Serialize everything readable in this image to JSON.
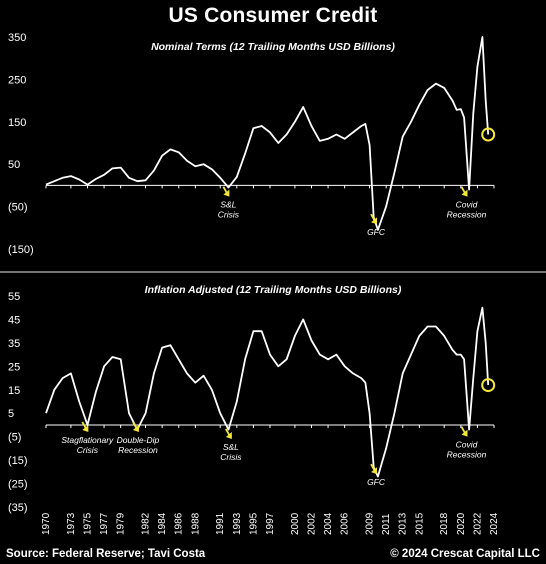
{
  "title": "US Consumer Credit",
  "source": "Source: Federal Reserve; Tavi Costa",
  "copyright": "© 2024 Crescat Capital LLC",
  "colors": {
    "background": "#000000",
    "line": "#ffffff",
    "highlight": "#f5e63a",
    "divider": "#9a9a9a"
  },
  "x_ticks": [
    "1970",
    "1973",
    "1975",
    "1977",
    "1979",
    "1982",
    "1984",
    "1986",
    "1988",
    "1991",
    "1993",
    "1995",
    "1997",
    "2000",
    "2002",
    "2004",
    "2006",
    "2009",
    "2011",
    "2013",
    "2015",
    "2018",
    "2020",
    "2022",
    "2024"
  ],
  "chart_data": [
    {
      "type": "line",
      "title": "Nominal Terms (12 Trailing Months USD Billions)",
      "y_tick_labels": [
        "350",
        "250",
        "150",
        "50",
        "(50)",
        "(150)"
      ],
      "y_tick_values": [
        350,
        250,
        150,
        50,
        -50,
        -150
      ],
      "ylim": [
        -150,
        350
      ],
      "xlim": [
        1970,
        2024
      ],
      "x": [
        1970,
        1971,
        1972,
        1973,
        1974,
        1975,
        1976,
        1977,
        1978,
        1979,
        1980,
        1981,
        1982,
        1983,
        1984,
        1985,
        1986,
        1987,
        1988,
        1989,
        1990,
        1991,
        1992,
        1993,
        1994,
        1995,
        1996,
        1997,
        1998,
        1999,
        2000,
        2001,
        2002,
        2003,
        2004,
        2005,
        2006,
        2007,
        2008,
        2008.5,
        2009,
        2009.5,
        2010,
        2011,
        2012,
        2013,
        2014,
        2015,
        2016,
        2017,
        2018,
        2019,
        2019.5,
        2020,
        2020.4,
        2021,
        2021.5,
        2022,
        2022.6,
        2023,
        2023.3
      ],
      "values": [
        2,
        10,
        18,
        22,
        14,
        2,
        15,
        25,
        40,
        42,
        18,
        10,
        12,
        35,
        70,
        85,
        78,
        58,
        45,
        50,
        38,
        18,
        -5,
        20,
        75,
        135,
        140,
        125,
        100,
        120,
        150,
        185,
        140,
        105,
        110,
        120,
        110,
        125,
        140,
        145,
        95,
        -75,
        -105,
        -50,
        30,
        115,
        150,
        190,
        225,
        240,
        230,
        200,
        178,
        180,
        160,
        -10,
        170,
        280,
        350,
        200,
        120
      ],
      "annotations": [
        {
          "label": "S&L Crisis",
          "x": 1991.5,
          "y": -10
        },
        {
          "label": "GFC",
          "x": 2009.3,
          "y": -75
        },
        {
          "label": "Covid Recession",
          "x": 2020.2,
          "y": -10
        }
      ],
      "highlight_point": {
        "x": 2023.3,
        "y": 120
      }
    },
    {
      "type": "line",
      "title": "Inflation Adjusted (12 Trailing Months USD Billions)",
      "y_tick_labels": [
        "55",
        "45",
        "35",
        "25",
        "15",
        "5",
        "(5)",
        "(15)",
        "(25)",
        "(35)"
      ],
      "y_tick_values": [
        55,
        45,
        35,
        25,
        15,
        5,
        -5,
        -15,
        -25,
        -35
      ],
      "ylim": [
        -35,
        55
      ],
      "xlim": [
        1970,
        2024
      ],
      "x": [
        1970,
        1971,
        1972,
        1973,
        1974,
        1975,
        1976,
        1977,
        1978,
        1979,
        1980,
        1981,
        1982,
        1983,
        1984,
        1985,
        1986,
        1987,
        1988,
        1989,
        1990,
        1991,
        1992,
        1993,
        1994,
        1995,
        1996,
        1997,
        1998,
        1999,
        2000,
        2001,
        2002,
        2003,
        2004,
        2005,
        2006,
        2007,
        2008,
        2008.5,
        2009,
        2009.5,
        2010,
        2011,
        2012,
        2013,
        2014,
        2015,
        2016,
        2017,
        2018,
        2019,
        2019.5,
        2020,
        2020.4,
        2021,
        2021.5,
        2022,
        2022.6,
        2023,
        2023.3
      ],
      "values": [
        5,
        15,
        20,
        22,
        10,
        0,
        14,
        25,
        29,
        28,
        5,
        -2,
        5,
        22,
        33,
        34,
        28,
        22,
        18,
        21,
        15,
        5,
        -2,
        10,
        28,
        40,
        40,
        30,
        25,
        28,
        38,
        45,
        36,
        30,
        28,
        30,
        25,
        22,
        20,
        18,
        5,
        -18,
        -22,
        -10,
        5,
        22,
        30,
        38,
        42,
        42,
        38,
        32,
        30,
        30,
        28,
        -2,
        20,
        40,
        50,
        35,
        17
      ],
      "annotations": [
        {
          "label": "Stagflationary Crisis",
          "x": 1974.5,
          "y": 0
        },
        {
          "label": "Double-Dip Recession",
          "x": 1980.6,
          "y": 0
        },
        {
          "label": "S&L Crisis",
          "x": 1991.8,
          "y": -3
        },
        {
          "label": "GFC",
          "x": 2009.3,
          "y": -18
        },
        {
          "label": "Covid Recession",
          "x": 2020.2,
          "y": -2
        }
      ],
      "highlight_point": {
        "x": 2023.3,
        "y": 17
      }
    }
  ]
}
